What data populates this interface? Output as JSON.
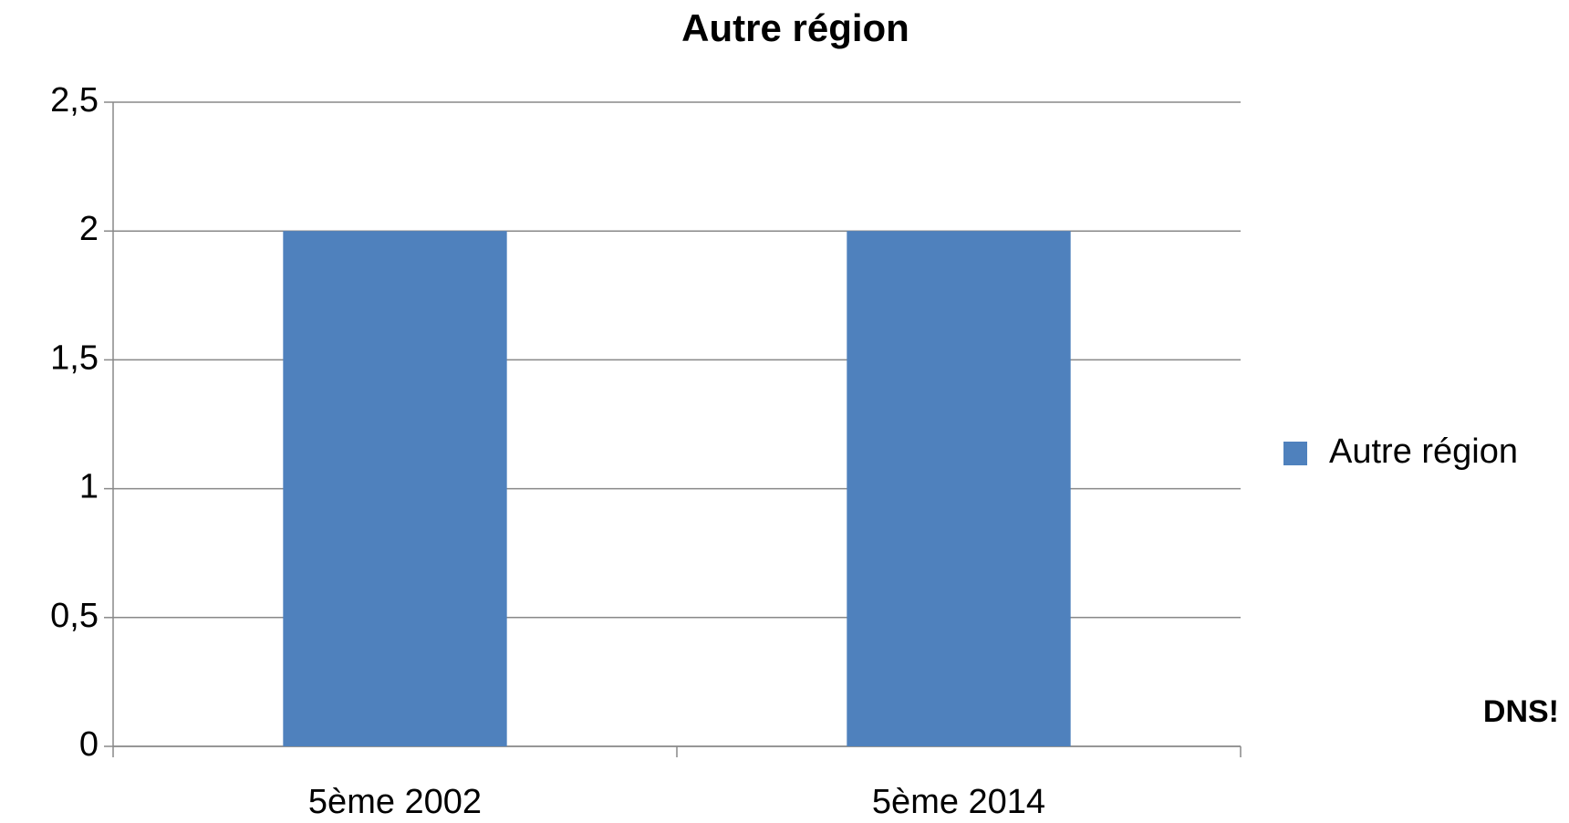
{
  "chart_data": {
    "type": "bar",
    "title": "Autre région",
    "categories": [
      "5ème 2002",
      "5ème 2014"
    ],
    "series": [
      {
        "name": "Autre région",
        "color": "#4f81bd",
        "values": [
          2,
          2
        ]
      }
    ],
    "ylim": [
      0,
      2.5
    ],
    "yticks": [
      0,
      {
        "value": 0.5,
        "label": "0,5"
      },
      1,
      {
        "value": 1.5,
        "label": "1,5"
      },
      2,
      {
        "value": 2.5,
        "label": "2,5"
      }
    ],
    "grid": true,
    "legend": "right",
    "annotation": "DNS!"
  }
}
